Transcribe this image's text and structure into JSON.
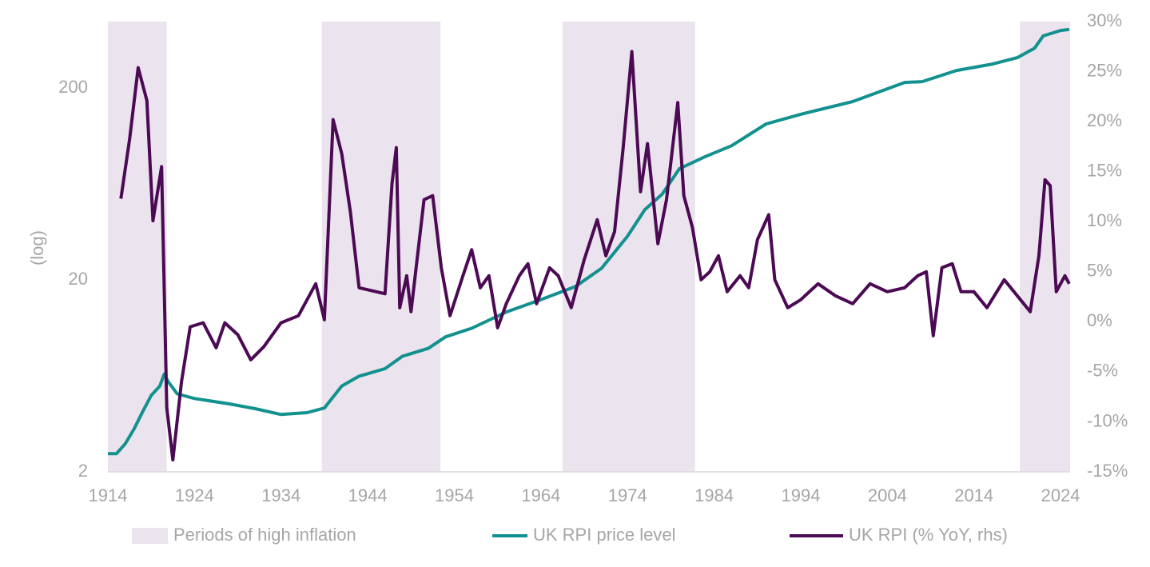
{
  "chart_data": {
    "type": "line",
    "ylabel": "(log)",
    "ylog": true,
    "ylim": [
      2,
      444
    ],
    "yticks": [
      2,
      20,
      200
    ],
    "y2lim": [
      -15,
      30
    ],
    "y2ticks": [
      {
        "value": -15,
        "label": "-15%"
      },
      {
        "value": -10,
        "label": "-10%"
      },
      {
        "value": -5,
        "label": "-5%"
      },
      {
        "value": 0,
        "label": "0%"
      },
      {
        "value": 5,
        "label": "5%"
      },
      {
        "value": 10,
        "label": "10%"
      },
      {
        "value": 15,
        "label": "15%"
      },
      {
        "value": 20,
        "label": "20%"
      },
      {
        "value": 25,
        "label": "25%"
      },
      {
        "value": 30,
        "label": "30%"
      }
    ],
    "xlim": [
      1914,
      2025.1
    ],
    "xticks": [
      1914,
      1924,
      1934,
      1944,
      1954,
      1964,
      1974,
      1984,
      1994,
      2004,
      2014,
      2024
    ],
    "grid": false,
    "legend": "bottom",
    "shaded": {
      "name": "Periods of high inflation",
      "color": "#ebe3ee",
      "periods": [
        [
          1914,
          1920.8
        ],
        [
          1938.7,
          1952.4
        ],
        [
          1966.5,
          1981.8
        ],
        [
          2019.3,
          2025.1
        ]
      ]
    },
    "series": [
      {
        "name": "UK RPI price level",
        "color": "#12918f",
        "x": [
          1914,
          1915,
          1916,
          1917,
          1918,
          1919,
          1920,
          1920.5,
          1921,
          1922,
          1924,
          1928,
          1931,
          1934,
          1937,
          1939,
          1941,
          1943,
          1946,
          1948,
          1951,
          1953,
          1956,
          1960,
          1964,
          1968,
          1971,
          1974,
          1976,
          1978,
          1980,
          1983,
          1986,
          1990,
          1994,
          2000,
          2006,
          2008,
          2012,
          2016,
          2019,
          2021,
          2022,
          2024,
          2025
        ],
        "values": [
          2.49,
          2.49,
          2.8,
          3.33,
          4.1,
          5.0,
          5.6,
          6.45,
          5.87,
          5.1,
          4.82,
          4.52,
          4.27,
          3.98,
          4.07,
          4.3,
          5.6,
          6.3,
          6.9,
          8.0,
          8.8,
          10.1,
          11.2,
          13.6,
          15.8,
          18.5,
          23,
          33.8,
          46.5,
          56,
          76,
          88,
          100,
          130,
          146,
          170,
          214,
          216,
          247,
          266,
          288,
          323,
          374,
          399,
          404
        ]
      },
      {
        "name": "UK RPI (% YoY, rhs)",
        "color": "#4b0a53",
        "axis": "y2",
        "x": [
          1915.5,
          1916.5,
          1917.5,
          1918.5,
          1919.2,
          1920.2,
          1920.8,
          1921.5,
          1922.5,
          1923.5,
          1925,
          1926.5,
          1927.5,
          1929,
          1930.5,
          1932,
          1934,
          1936,
          1938,
          1939,
          1940,
          1941,
          1942,
          1943,
          1946,
          1946.8,
          1947.3,
          1947.7,
          1948.5,
          1949,
          1950.5,
          1951.5,
          1952.5,
          1953.5,
          1955,
          1956,
          1957,
          1958,
          1959,
          1960,
          1961.5,
          1962.5,
          1963.5,
          1965,
          1966,
          1967.5,
          1969,
          1970.5,
          1971.5,
          1972.5,
          1973.5,
          1974.5,
          1975.5,
          1976.3,
          1977.5,
          1978.5,
          1979.8,
          1980.5,
          1981.5,
          1982.5,
          1983.5,
          1984.5,
          1985.5,
          1987,
          1988,
          1989,
          1990.3,
          1991,
          1992.5,
          1994,
          1996,
          1998,
          2000,
          2002,
          2004,
          2006,
          2007.5,
          2008.5,
          2009.3,
          2010.3,
          2011.5,
          2012.5,
          2014,
          2015.5,
          2017.5,
          2019,
          2020.5,
          2021.5,
          2022.2,
          2022.8,
          2023.5,
          2024.5,
          2025
        ],
        "values": [
          12.3,
          18.2,
          25.4,
          22.1,
          10.1,
          15.5,
          -8.6,
          -13.8,
          -6.0,
          -0.5,
          -0.1,
          -2.6,
          -0.1,
          -1.3,
          -3.8,
          -2.5,
          -0.1,
          0.6,
          3.8,
          0.2,
          20.2,
          16.8,
          11.0,
          3.4,
          2.8,
          13.8,
          17.4,
          1.4,
          4.6,
          1.0,
          12.2,
          12.6,
          5.4,
          0.6,
          4.6,
          7.2,
          3.4,
          4.6,
          -0.6,
          1.8,
          4.6,
          5.8,
          1.8,
          5.4,
          4.6,
          1.4,
          6.2,
          10.2,
          6.6,
          9.0,
          17.4,
          27.0,
          13.0,
          17.8,
          7.8,
          12.2,
          21.9,
          12.6,
          9.4,
          4.2,
          5.0,
          6.6,
          3.0,
          4.6,
          3.4,
          8.2,
          10.7,
          4.2,
          1.4,
          2.2,
          3.8,
          2.6,
          1.8,
          3.8,
          3.0,
          3.4,
          4.6,
          5.0,
          -1.4,
          5.4,
          5.8,
          3.0,
          3.0,
          1.4,
          4.2,
          2.6,
          1.0,
          6.6,
          14.2,
          13.6,
          3.0,
          4.6,
          3.8
        ]
      }
    ]
  }
}
